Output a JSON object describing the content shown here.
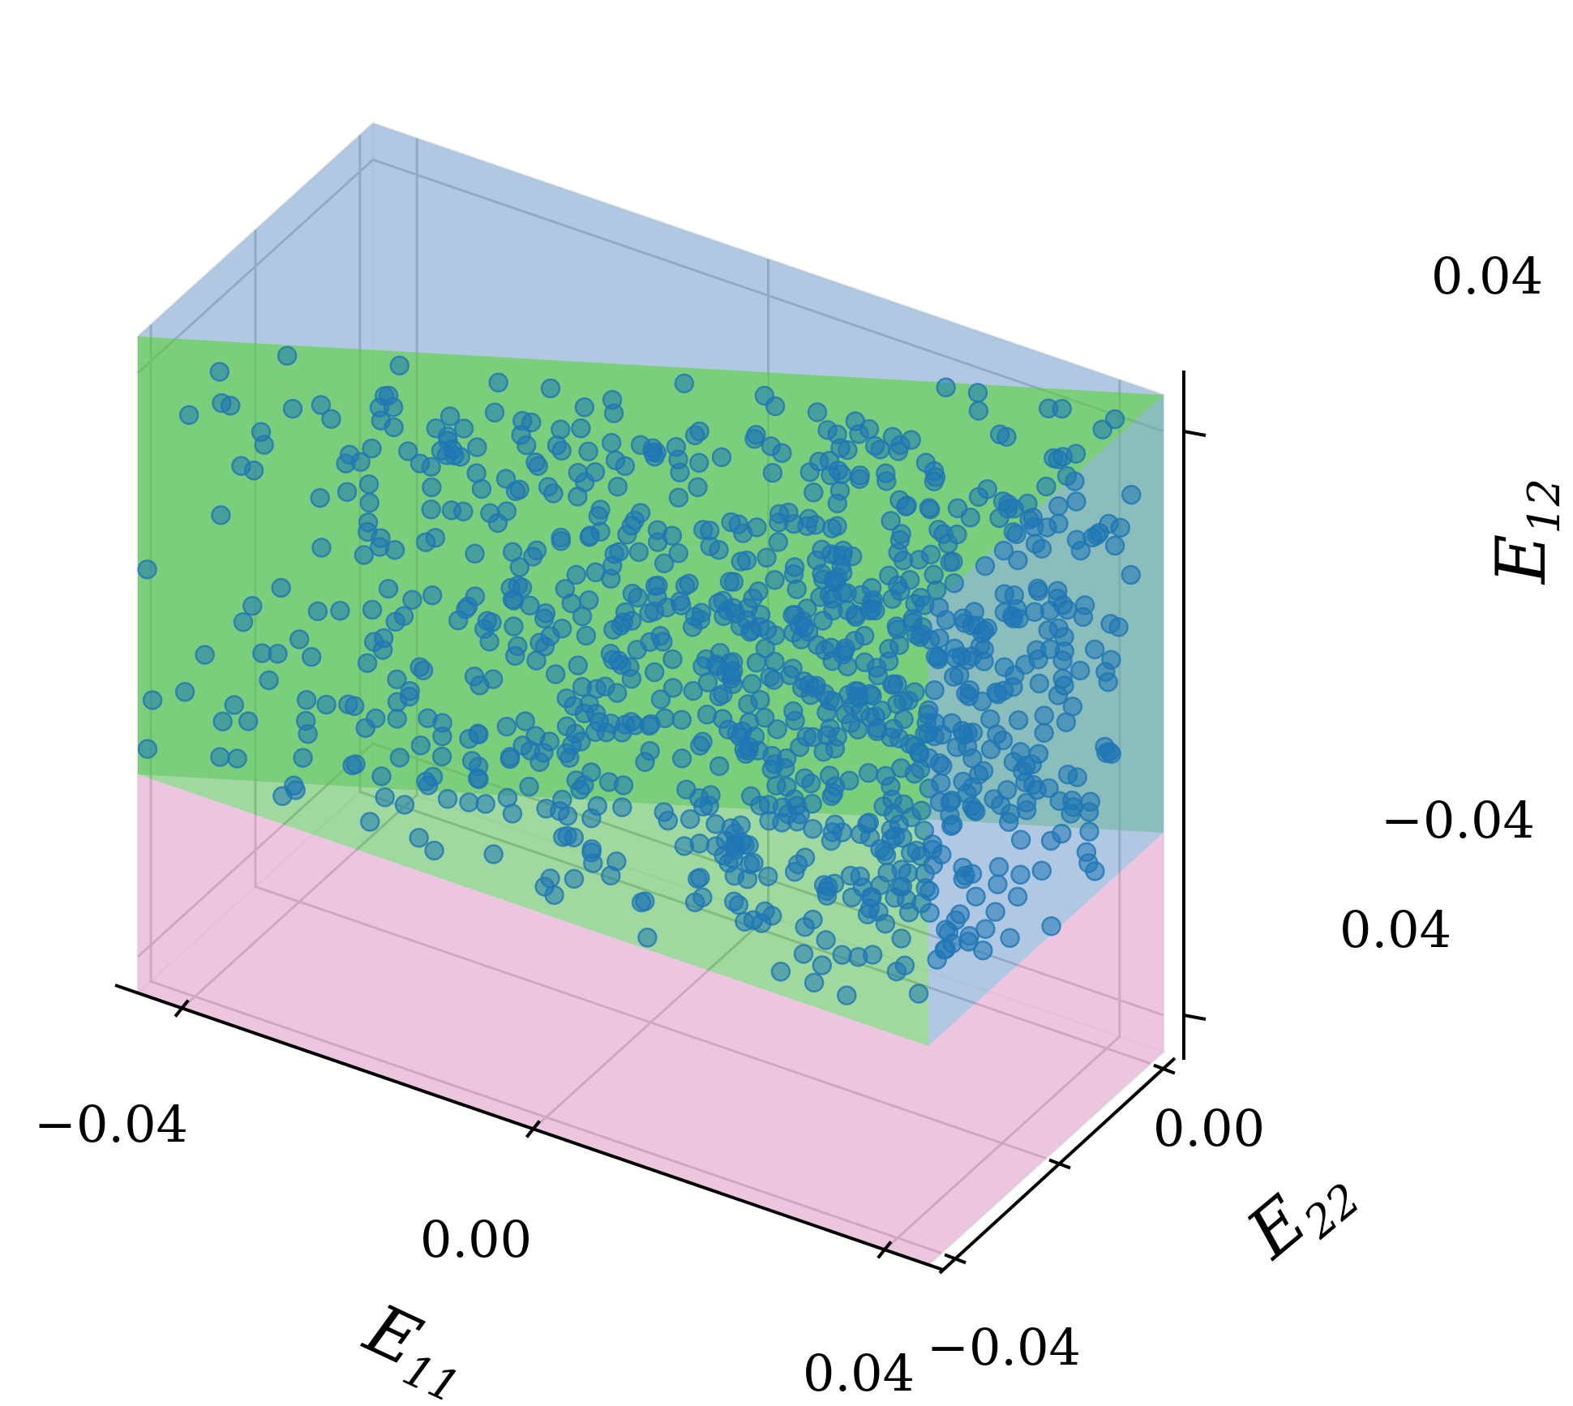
{
  "chart_data": {
    "type": "scatter",
    "title": "",
    "axes": {
      "x": {
        "label": "E",
        "label_sub": "11",
        "range": [
          -0.045,
          0.045
        ],
        "ticks": [
          -0.04,
          0.0,
          0.04
        ],
        "tick_labels": [
          "−0.04",
          "0.00",
          "0.04"
        ]
      },
      "y": {
        "label": "E",
        "label_sub": "22",
        "range": [
          -0.045,
          0.045
        ],
        "ticks": [
          -0.04,
          0.0,
          0.04
        ],
        "tick_labels": [
          "−0.04",
          "0.00",
          "0.04"
        ]
      },
      "z": {
        "label": "E",
        "label_sub": "12",
        "range": [
          -0.045,
          0.045
        ],
        "ticks": [
          -0.04,
          0.04
        ],
        "tick_labels": [
          "−0.04",
          "0.04"
        ]
      }
    },
    "grid": true,
    "regions": [
      {
        "name": "",
        "color": "#e7a3d0",
        "opacity": 0.55,
        "box": {
          "x": [
            -0.045,
            0.045
          ],
          "y": [
            -0.045,
            0.045
          ],
          "z": [
            -0.045,
            -0.015
          ]
        }
      },
      {
        "name": "",
        "color": "#5cc45c",
        "opacity": 0.55,
        "box": {
          "x": [
            -0.045,
            0.045
          ],
          "y": [
            -0.045,
            0.045
          ],
          "z": [
            -0.015,
            0.045
          ]
        },
        "condition": "E11 <= E22"
      },
      {
        "name": "",
        "color": "#7aa6d6",
        "opacity": 0.55,
        "box": {
          "x": [
            -0.045,
            0.045
          ],
          "y": [
            -0.045,
            0.045
          ],
          "z": [
            -0.015,
            0.045
          ]
        },
        "condition": "E11 >= E22"
      }
    ],
    "scatter": {
      "color": "#1f77b4",
      "opacity": 0.55,
      "count": 1000,
      "distribution": {
        "E11": [
          -0.045,
          0.045
        ],
        "E22": [
          -0.045,
          0.045
        ],
        "E12": [
          -0.015,
          0.045
        ],
        "constraint": "E22 <= E11"
      }
    }
  }
}
